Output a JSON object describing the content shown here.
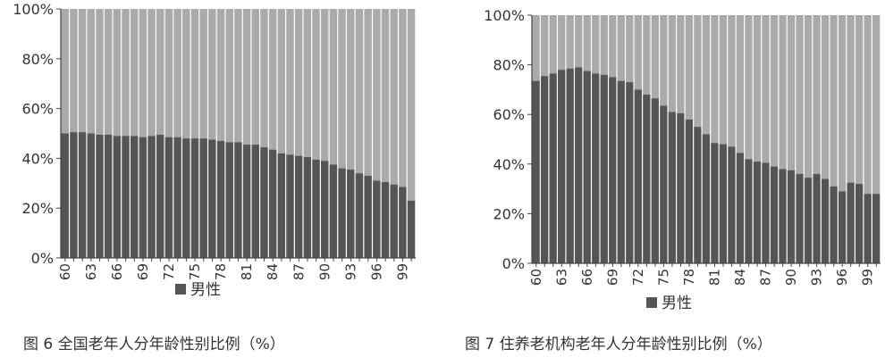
{
  "colors": {
    "male": "#555555",
    "remainder": "#aaaaaa",
    "axis": "#444444"
  },
  "charts": [
    {
      "caption": "图 6  全国老年人分年龄性别比例（%）",
      "chart_data": {
        "type": "bar",
        "stacked": true,
        "percent": true,
        "ylim": [
          0,
          100
        ],
        "yticks": [
          "0%",
          "20%",
          "40%",
          "60%",
          "80%",
          "100%"
        ],
        "legend": {
          "position": "bottom",
          "entries": [
            "男性"
          ]
        },
        "categories": [
          60,
          61,
          62,
          63,
          64,
          65,
          66,
          67,
          68,
          69,
          70,
          71,
          72,
          73,
          74,
          75,
          76,
          77,
          78,
          79,
          80,
          81,
          82,
          83,
          84,
          85,
          86,
          87,
          88,
          89,
          90,
          91,
          92,
          93,
          94,
          95,
          96,
          97,
          98,
          99,
          100
        ],
        "x_tick_labels": [
          "60",
          "63",
          "66",
          "69",
          "72",
          "75",
          "78",
          "81",
          "84",
          "87",
          "90",
          "93",
          "96",
          "99"
        ],
        "series": [
          {
            "name": "男性",
            "values": [
              50,
              50.5,
              50.5,
              50,
              49.5,
              49.5,
              49,
              49,
              49,
              48.5,
              49,
              49.5,
              48.5,
              48.5,
              48,
              48,
              48,
              47.5,
              47,
              46.5,
              46.5,
              45.5,
              45.5,
              44.5,
              43.5,
              42,
              41.5,
              41,
              40.5,
              39.5,
              39,
              37.5,
              36,
              35.5,
              34,
              33,
              31,
              30.5,
              29.5,
              28.5,
              23
            ]
          }
        ]
      }
    },
    {
      "caption": "图 7  住养老机构老年人分年龄性别比例（%）",
      "chart_data": {
        "type": "bar",
        "stacked": true,
        "percent": true,
        "ylim": [
          0,
          100
        ],
        "yticks": [
          "0%",
          "20%",
          "40%",
          "60%",
          "80%",
          "100%"
        ],
        "legend": {
          "position": "bottom",
          "entries": [
            "男性"
          ]
        },
        "categories": [
          60,
          61,
          62,
          63,
          64,
          65,
          66,
          67,
          68,
          69,
          70,
          71,
          72,
          73,
          74,
          75,
          76,
          77,
          78,
          79,
          80,
          81,
          82,
          83,
          84,
          85,
          86,
          87,
          88,
          89,
          90,
          91,
          92,
          93,
          94,
          95,
          96,
          97,
          98,
          99,
          100
        ],
        "x_tick_labels": [
          "60",
          "63",
          "66",
          "69",
          "72",
          "75",
          "78",
          "81",
          "84",
          "87",
          "90",
          "93",
          "96",
          "99"
        ],
        "series": [
          {
            "name": "男性",
            "values": [
              73.5,
              75.5,
              76.5,
              78,
              78.5,
              79,
              77.5,
              76.5,
              76,
              75,
              73.5,
              73,
              70,
              68,
              66.5,
              63.5,
              61,
              60.5,
              58,
              55,
              52,
              48.5,
              48,
              47,
              44.5,
              42,
              41,
              40.5,
              39,
              38,
              37.5,
              36,
              34.5,
              36,
              34,
              31,
              29,
              32.5,
              32,
              28,
              28
            ]
          }
        ]
      }
    }
  ]
}
